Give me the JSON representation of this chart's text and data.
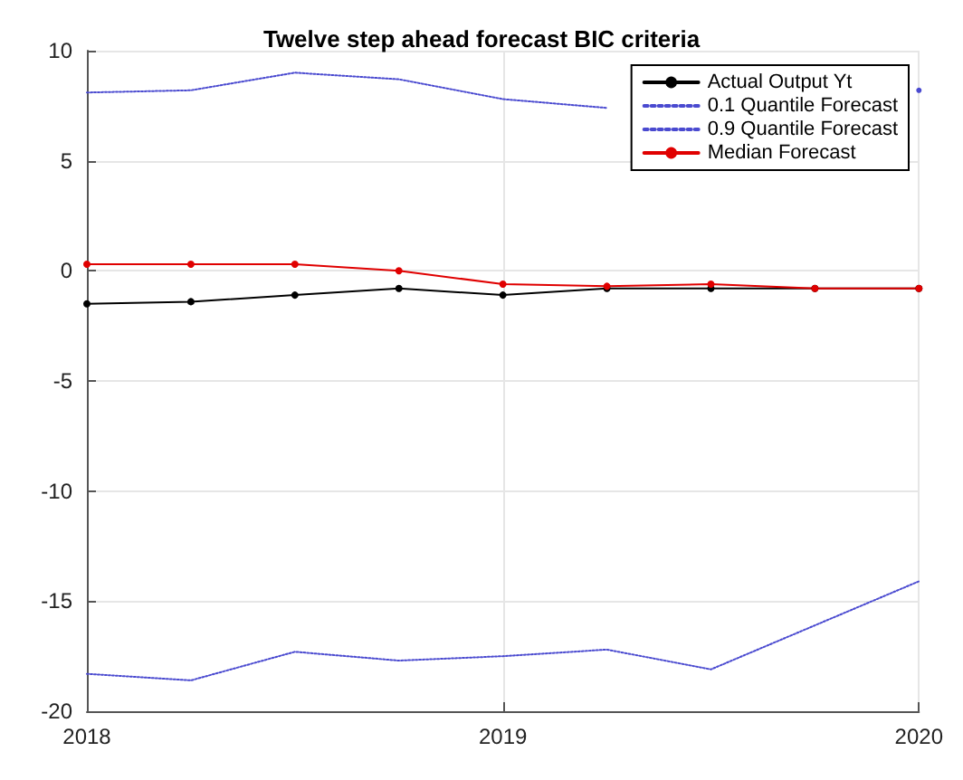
{
  "chart_data": {
    "type": "line",
    "title": "Twelve step ahead forecast BIC criteria",
    "x": [
      2018,
      2018.25,
      2018.5,
      2018.75,
      2019,
      2019.25,
      2019.5,
      2019.75,
      2020
    ],
    "xlim": [
      2018,
      2020
    ],
    "xticks": [
      2018,
      2019,
      2020
    ],
    "ylim": [
      -20,
      10
    ],
    "yticks": [
      -20,
      -15,
      -10,
      -5,
      0,
      5,
      10
    ],
    "grid": true,
    "legend": "top right",
    "series": [
      {
        "name": "Actual Output Yt",
        "color": "#000000",
        "marker": "circle",
        "line_style": "solid",
        "values": [
          -1.5,
          -1.4,
          -1.1,
          -0.8,
          -1.1,
          -0.8,
          -0.8,
          -0.8,
          -0.8
        ]
      },
      {
        "name": "0.1 Quantile Forecast",
        "color": "#4a4ad0",
        "marker": "none",
        "line_style": "dotted",
        "values": [
          -18.3,
          -18.6,
          -17.3,
          -17.7,
          -17.5,
          -17.2,
          -18.1,
          -16.1,
          -14.1
        ]
      },
      {
        "name": "0.9 Quantile Forecast",
        "color": "#4a4ad0",
        "marker": "none",
        "line_style": "dotted",
        "values": [
          8.1,
          8.2,
          9.0,
          8.7,
          7.8,
          7.4,
          null,
          null,
          8.2
        ]
      },
      {
        "name": "Median Forecast",
        "color": "#e00000",
        "marker": "circle",
        "line_style": "solid",
        "values": [
          0.3,
          0.3,
          0.3,
          0.0,
          -0.6,
          -0.7,
          -0.6,
          -0.8,
          -0.8
        ]
      }
    ]
  }
}
